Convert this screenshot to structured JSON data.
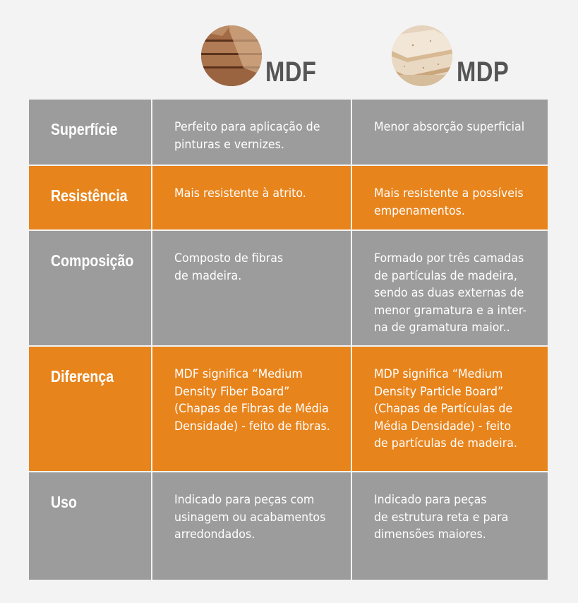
{
  "header": {
    "mdf": {
      "title": "MDF"
    },
    "mdp": {
      "title": "MDP"
    }
  },
  "rows": [
    {
      "label": "Superfície",
      "mdf": "Perfeito para aplicação de\npinturas e vernizes.",
      "mdp": "Menor absorção superficial",
      "style": "gray"
    },
    {
      "label": "Resistência",
      "mdf": "Mais resistente à atrito.",
      "mdp": "Mais resistente a possíveis\nempenamentos.",
      "style": "orange"
    },
    {
      "label": "Composição",
      "mdf": "Composto de fibras\nde madeira.",
      "mdp": "Formado por três camadas\nde partículas de madeira,\nsendo as duas externas de\nmenor gramatura e a inter-\nna de gramatura maior..",
      "style": "gray"
    },
    {
      "label": "Diferença",
      "mdf": "MDF significa “Medium\nDensity Fiber Board”\n(Chapas de Fibras de Média\nDensidade) - feito de fibras.",
      "mdp": "MDP significa “Medium\nDensity Particle Board”\n(Chapas de Partículas de\nMédia Densidade) - feito\nde partículas de madeira.",
      "style": "orange"
    },
    {
      "label": "Uso",
      "mdf": "Indicado para peças com\nusinagem ou acabamentos\narredondados.",
      "mdp": "Indicado para peças\nde estrutura reta e para\ndimensões maiores.",
      "style": "gray"
    }
  ],
  "colors": {
    "gray": "#9c9c9c",
    "orange": "#e8841c",
    "heading": "#555555"
  }
}
